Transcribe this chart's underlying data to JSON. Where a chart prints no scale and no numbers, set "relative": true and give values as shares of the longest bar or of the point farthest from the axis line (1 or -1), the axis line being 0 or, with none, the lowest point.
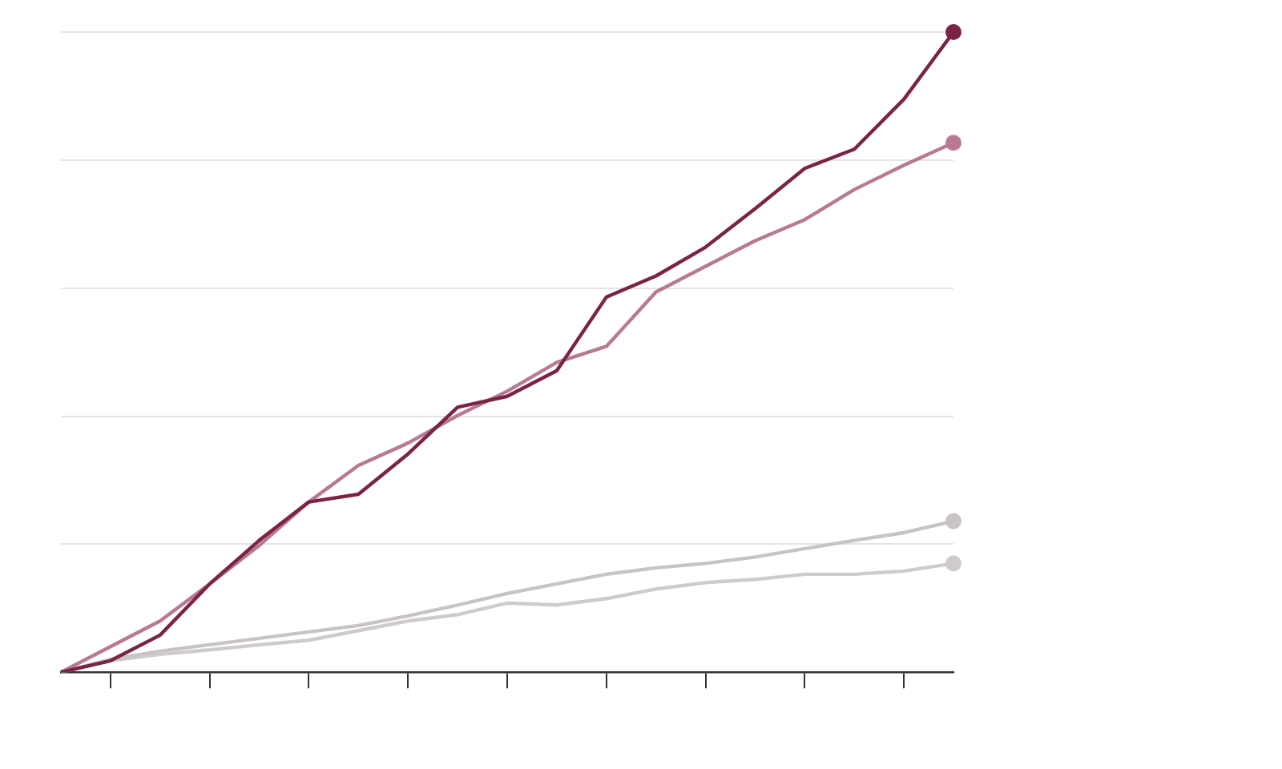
{
  "chart_data": {
    "type": "line",
    "relative": true,
    "grid": "y",
    "line_style": "solid",
    "legend": false,
    "categories": [
      null,
      null,
      null,
      null,
      null,
      null,
      null,
      null,
      null,
      null,
      null,
      null,
      null,
      null,
      null,
      null,
      null,
      null,
      null
    ],
    "series": [
      {
        "color": "#7b2346",
        "values": [
          0,
          0.018,
          0.058,
          0.138,
          0.206,
          0.266,
          0.278,
          0.341,
          0.414,
          0.431,
          0.471,
          0.586,
          0.619,
          0.664,
          0.724,
          0.787,
          0.817,
          0.895,
          1
        ]
      },
      {
        "color": "#b87a92",
        "values": [
          0,
          0.04,
          0.08,
          0.138,
          0.198,
          0.266,
          0.323,
          0.358,
          0.401,
          0.439,
          0.484,
          0.509,
          0.594,
          0.634,
          0.674,
          0.707,
          0.754,
          0.792,
          0.827
        ]
      },
      {
        "color": "#c8c4c4",
        "values": [
          0,
          0.02,
          0.033,
          0.043,
          0.053,
          0.063,
          0.073,
          0.088,
          0.105,
          0.123,
          0.138,
          0.153,
          0.163,
          0.17,
          0.18,
          0.193,
          0.206,
          0.218,
          0.236
        ]
      },
      {
        "color": "#cfcbcb",
        "values": [
          0,
          0.018,
          0.028,
          0.035,
          0.043,
          0.05,
          0.065,
          0.08,
          0.09,
          0.108,
          0.105,
          0.115,
          0.13,
          0.14,
          0.145,
          0.153,
          0.153,
          0.158,
          0.17
        ]
      }
    ]
  }
}
